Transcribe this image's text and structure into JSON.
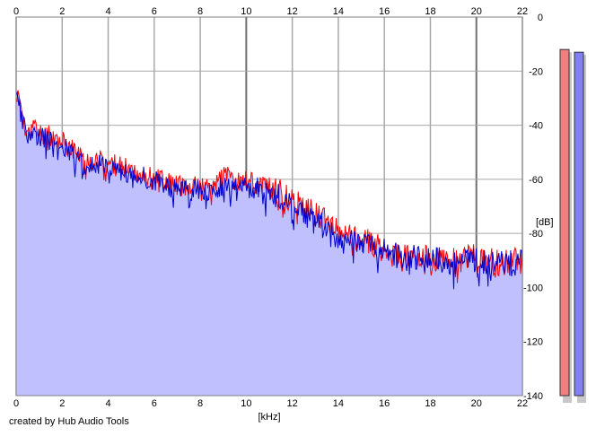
{
  "chart_data": {
    "type": "area",
    "xlabel": "[kHz]",
    "ylabel": "[dB]",
    "xlim": [
      0,
      22
    ],
    "ylim": [
      -140,
      0
    ],
    "x_ticks": [
      0,
      2,
      4,
      6,
      8,
      10,
      12,
      14,
      16,
      18,
      20,
      22
    ],
    "y_ticks": [
      0,
      -20,
      -40,
      -60,
      -80,
      -100,
      -120,
      -140
    ],
    "grid": true,
    "series": [
      {
        "color": "#ff0000",
        "x": [
          0,
          0.1,
          0.2,
          0.3,
          0.5,
          0.7,
          1,
          1.5,
          2,
          2.5,
          3,
          3.5,
          4,
          4.5,
          5,
          5.5,
          6,
          6.5,
          7,
          7.5,
          8,
          8.5,
          9,
          9.5,
          10,
          10.5,
          11,
          11.5,
          12,
          12.5,
          13,
          13.5,
          14,
          14.5,
          15,
          15.5,
          16,
          16.5,
          17,
          17.5,
          18,
          18.5,
          19,
          19.5,
          20,
          20.5,
          21,
          21.5,
          22
        ],
        "values": [
          -31,
          -27,
          -33,
          -37,
          -44,
          -40,
          -43,
          -44,
          -46,
          -49,
          -53,
          -52,
          -54,
          -55,
          -57,
          -57,
          -60,
          -60,
          -62,
          -63,
          -62,
          -63,
          -58,
          -61,
          -60,
          -62,
          -63,
          -65,
          -68,
          -71,
          -73,
          -76,
          -80,
          -81,
          -82,
          -84,
          -86,
          -88,
          -89,
          -88,
          -90,
          -90,
          -90,
          -89,
          -89,
          -90,
          -91,
          -90,
          -90
        ]
      },
      {
        "color": "#0000cc",
        "x": [
          0,
          0.1,
          0.2,
          0.3,
          0.5,
          0.7,
          1,
          1.5,
          2,
          2.5,
          3,
          3.5,
          4,
          4.5,
          5,
          5.5,
          6,
          6.5,
          7,
          7.5,
          8,
          8.5,
          9,
          9.5,
          10,
          10.5,
          11,
          11.5,
          12,
          12.5,
          13,
          13.5,
          14,
          14.5,
          15,
          15.5,
          16,
          16.5,
          17,
          17.5,
          18,
          18.5,
          19,
          19.5,
          20,
          20.5,
          21,
          21.5,
          22
        ],
        "values": [
          -30,
          -25,
          -32,
          -38,
          -45,
          -42,
          -44,
          -46,
          -48,
          -51,
          -55,
          -54,
          -55,
          -56,
          -58,
          -59,
          -61,
          -62,
          -64,
          -64,
          -64,
          -64,
          -62,
          -63,
          -62,
          -64,
          -65,
          -67,
          -70,
          -73,
          -75,
          -78,
          -81,
          -82,
          -83,
          -85,
          -87,
          -88,
          -89,
          -89,
          -90,
          -90,
          -91,
          -90,
          -90,
          -91,
          -91,
          -91,
          -91
        ]
      }
    ],
    "fill_color": "#c0c0ff",
    "meters": [
      {
        "color": "#f08080",
        "level_db": -12
      },
      {
        "color": "#8080f0",
        "level_db": -13
      }
    ]
  },
  "footer": {
    "credit": "created by Hub Audio Tools"
  }
}
